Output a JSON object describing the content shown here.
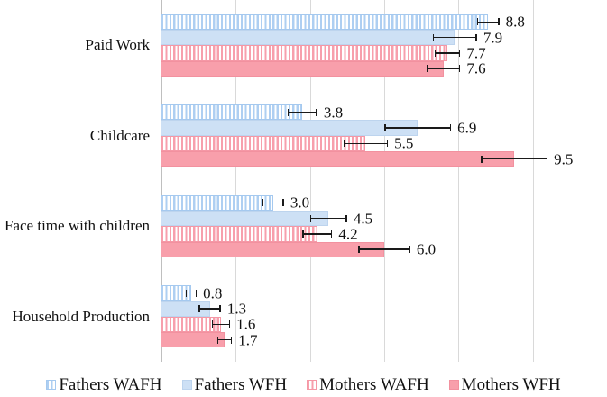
{
  "chart_data": {
    "type": "bar",
    "orientation": "horizontal",
    "title": "",
    "xlabel": "",
    "ylabel": "",
    "categories": [
      "Paid Work",
      "Childcare",
      "Face time with children",
      "Household Production"
    ],
    "series": [
      {
        "name": "Fathers WAFH",
        "pattern": "striped",
        "color": "#aecff2",
        "border": "#a5c9ef",
        "values": [
          8.8,
          3.8,
          3.0,
          0.8
        ],
        "errors": [
          0.3,
          0.4,
          0.3,
          0.15
        ]
      },
      {
        "name": "Fathers WFH",
        "pattern": "solid",
        "color": "#cde0f5",
        "border": "#bdd4ee",
        "values": [
          7.9,
          6.9,
          4.5,
          1.3
        ],
        "errors": [
          0.6,
          0.9,
          0.5,
          0.3
        ]
      },
      {
        "name": "Mothers WAFH",
        "pattern": "striped",
        "color": "#f79fac",
        "border": "#f598a6",
        "values": [
          7.7,
          5.5,
          4.2,
          1.6
        ],
        "errors": [
          0.35,
          0.6,
          0.4,
          0.25
        ]
      },
      {
        "name": "Mothers WFH",
        "pattern": "solid",
        "color": "#f89fab",
        "border": "#f2919f",
        "values": [
          7.6,
          9.5,
          6.0,
          1.7
        ],
        "errors": [
          0.45,
          0.9,
          0.7,
          0.2
        ]
      }
    ],
    "value_labels": [
      [
        "8.8",
        "3.8",
        "3.0",
        "0.8"
      ],
      [
        "7.9",
        "6.9",
        "4.5",
        "1.3"
      ],
      [
        "7.7",
        "5.5",
        "4.2",
        "1.6"
      ],
      [
        "7.6",
        "9.5",
        "6.0",
        "1.7"
      ]
    ],
    "xlim": [
      0,
      12
    ],
    "grid_step": 2,
    "grid": "vertical_only",
    "grid_color": "#d9d9d9",
    "axis_line_color": "#bfbfbf",
    "error_bar_color": "#1a1a1a",
    "stripe_background": "#ffffff",
    "legend_position": "bottom",
    "legend_entries": [
      "Fathers WAFH",
      "Fathers WFH",
      "Mothers WAFH",
      "Mothers WFH"
    ]
  }
}
